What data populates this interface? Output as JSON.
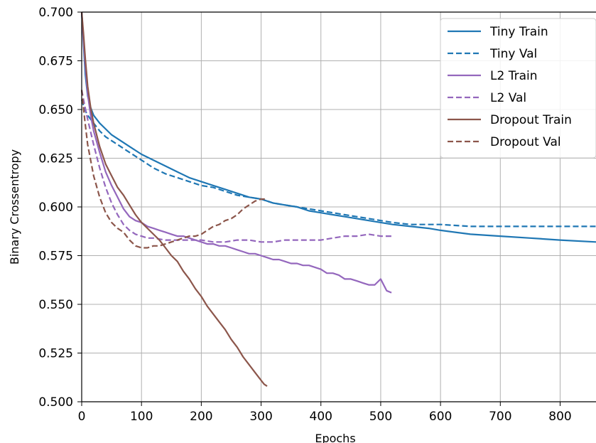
{
  "chart_data": {
    "type": "line",
    "title": "",
    "xlabel": "Epochs",
    "ylabel": "Binary Crossentropy",
    "xlim": [
      0,
      860
    ],
    "ylim": [
      0.5,
      0.7
    ],
    "xticks": [
      "0",
      "100",
      "200",
      "300",
      "400",
      "500",
      "600",
      "700",
      "800"
    ],
    "yticks": [
      "0.500",
      "0.525",
      "0.550",
      "0.575",
      "0.600",
      "0.625",
      "0.650",
      "0.675",
      "0.700"
    ],
    "grid": true,
    "legend_position": "top-right",
    "series": [
      {
        "name": "Tiny Train",
        "color": "#1f77b4",
        "style": "solid",
        "points": [
          [
            0,
            0.7
          ],
          [
            3,
            0.684
          ],
          [
            6,
            0.668
          ],
          [
            10,
            0.657
          ],
          [
            15,
            0.651
          ],
          [
            20,
            0.647
          ],
          [
            30,
            0.643
          ],
          [
            40,
            0.64
          ],
          [
            50,
            0.637
          ],
          [
            60,
            0.635
          ],
          [
            80,
            0.631
          ],
          [
            100,
            0.627
          ],
          [
            120,
            0.624
          ],
          [
            140,
            0.621
          ],
          [
            160,
            0.618
          ],
          [
            180,
            0.615
          ],
          [
            200,
            0.613
          ],
          [
            220,
            0.611
          ],
          [
            240,
            0.609
          ],
          [
            260,
            0.607
          ],
          [
            280,
            0.605
          ],
          [
            300,
            0.604
          ],
          [
            320,
            0.602
          ],
          [
            340,
            0.601
          ],
          [
            360,
            0.6
          ],
          [
            380,
            0.598
          ],
          [
            400,
            0.597
          ],
          [
            420,
            0.596
          ],
          [
            440,
            0.595
          ],
          [
            460,
            0.594
          ],
          [
            480,
            0.593
          ],
          [
            500,
            0.592
          ],
          [
            520,
            0.591
          ],
          [
            550,
            0.59
          ],
          [
            580,
            0.589
          ],
          [
            600,
            0.588
          ],
          [
            650,
            0.586
          ],
          [
            700,
            0.585
          ],
          [
            750,
            0.584
          ],
          [
            800,
            0.583
          ],
          [
            860,
            0.582
          ]
        ]
      },
      {
        "name": "Tiny Val",
        "color": "#1f77b4",
        "style": "dashed",
        "points": [
          [
            0,
            0.655
          ],
          [
            5,
            0.65
          ],
          [
            10,
            0.647
          ],
          [
            20,
            0.643
          ],
          [
            30,
            0.639
          ],
          [
            40,
            0.636
          ],
          [
            60,
            0.632
          ],
          [
            80,
            0.628
          ],
          [
            100,
            0.624
          ],
          [
            120,
            0.62
          ],
          [
            140,
            0.617
          ],
          [
            160,
            0.615
          ],
          [
            180,
            0.613
          ],
          [
            200,
            0.611
          ],
          [
            220,
            0.61
          ],
          [
            240,
            0.608
          ],
          [
            260,
            0.606
          ],
          [
            280,
            0.605
          ],
          [
            300,
            0.604
          ],
          [
            320,
            0.602
          ],
          [
            340,
            0.601
          ],
          [
            360,
            0.6
          ],
          [
            380,
            0.599
          ],
          [
            400,
            0.598
          ],
          [
            420,
            0.597
          ],
          [
            440,
            0.596
          ],
          [
            460,
            0.595
          ],
          [
            480,
            0.594
          ],
          [
            500,
            0.593
          ],
          [
            520,
            0.592
          ],
          [
            550,
            0.591
          ],
          [
            580,
            0.591
          ],
          [
            600,
            0.591
          ],
          [
            650,
            0.59
          ],
          [
            700,
            0.59
          ],
          [
            750,
            0.59
          ],
          [
            800,
            0.59
          ],
          [
            860,
            0.59
          ]
        ]
      },
      {
        "name": "L2 Train",
        "color": "#9467bd",
        "style": "solid",
        "points": [
          [
            0,
            0.7
          ],
          [
            3,
            0.686
          ],
          [
            6,
            0.672
          ],
          [
            10,
            0.658
          ],
          [
            15,
            0.647
          ],
          [
            20,
            0.639
          ],
          [
            30,
            0.628
          ],
          [
            40,
            0.618
          ],
          [
            50,
            0.611
          ],
          [
            60,
            0.605
          ],
          [
            70,
            0.599
          ],
          [
            80,
            0.595
          ],
          [
            90,
            0.593
          ],
          [
            100,
            0.592
          ],
          [
            110,
            0.59
          ],
          [
            120,
            0.589
          ],
          [
            130,
            0.588
          ],
          [
            140,
            0.587
          ],
          [
            150,
            0.586
          ],
          [
            160,
            0.585
          ],
          [
            170,
            0.585
          ],
          [
            180,
            0.584
          ],
          [
            190,
            0.583
          ],
          [
            200,
            0.582
          ],
          [
            210,
            0.581
          ],
          [
            220,
            0.581
          ],
          [
            230,
            0.58
          ],
          [
            240,
            0.58
          ],
          [
            250,
            0.579
          ],
          [
            260,
            0.578
          ],
          [
            270,
            0.577
          ],
          [
            280,
            0.576
          ],
          [
            290,
            0.576
          ],
          [
            300,
            0.575
          ],
          [
            310,
            0.574
          ],
          [
            320,
            0.573
          ],
          [
            330,
            0.573
          ],
          [
            340,
            0.572
          ],
          [
            350,
            0.571
          ],
          [
            360,
            0.571
          ],
          [
            370,
            0.57
          ],
          [
            380,
            0.57
          ],
          [
            390,
            0.569
          ],
          [
            400,
            0.568
          ],
          [
            410,
            0.566
          ],
          [
            420,
            0.566
          ],
          [
            430,
            0.565
          ],
          [
            440,
            0.563
          ],
          [
            450,
            0.563
          ],
          [
            460,
            0.562
          ],
          [
            470,
            0.561
          ],
          [
            480,
            0.56
          ],
          [
            490,
            0.56
          ],
          [
            500,
            0.563
          ],
          [
            505,
            0.56
          ],
          [
            510,
            0.557
          ],
          [
            518,
            0.556
          ]
        ]
      },
      {
        "name": "L2 Val",
        "color": "#9467bd",
        "style": "dashed",
        "points": [
          [
            0,
            0.66
          ],
          [
            5,
            0.652
          ],
          [
            10,
            0.645
          ],
          [
            20,
            0.632
          ],
          [
            30,
            0.62
          ],
          [
            40,
            0.61
          ],
          [
            50,
            0.602
          ],
          [
            60,
            0.596
          ],
          [
            70,
            0.591
          ],
          [
            80,
            0.588
          ],
          [
            90,
            0.586
          ],
          [
            100,
            0.585
          ],
          [
            110,
            0.584
          ],
          [
            120,
            0.584
          ],
          [
            140,
            0.583
          ],
          [
            160,
            0.583
          ],
          [
            180,
            0.583
          ],
          [
            200,
            0.583
          ],
          [
            220,
            0.582
          ],
          [
            240,
            0.582
          ],
          [
            260,
            0.583
          ],
          [
            280,
            0.583
          ],
          [
            300,
            0.582
          ],
          [
            320,
            0.582
          ],
          [
            340,
            0.583
          ],
          [
            360,
            0.583
          ],
          [
            380,
            0.583
          ],
          [
            400,
            0.583
          ],
          [
            420,
            0.584
          ],
          [
            440,
            0.585
          ],
          [
            460,
            0.585
          ],
          [
            480,
            0.586
          ],
          [
            500,
            0.585
          ],
          [
            510,
            0.585
          ],
          [
            518,
            0.585
          ]
        ]
      },
      {
        "name": "Dropout Train",
        "color": "#8c564b",
        "style": "solid",
        "points": [
          [
            0,
            0.7
          ],
          [
            3,
            0.689
          ],
          [
            6,
            0.676
          ],
          [
            10,
            0.662
          ],
          [
            15,
            0.651
          ],
          [
            20,
            0.643
          ],
          [
            30,
            0.631
          ],
          [
            40,
            0.622
          ],
          [
            50,
            0.616
          ],
          [
            60,
            0.61
          ],
          [
            70,
            0.606
          ],
          [
            80,
            0.601
          ],
          [
            90,
            0.596
          ],
          [
            100,
            0.592
          ],
          [
            110,
            0.589
          ],
          [
            120,
            0.586
          ],
          [
            130,
            0.583
          ],
          [
            140,
            0.579
          ],
          [
            150,
            0.575
          ],
          [
            160,
            0.572
          ],
          [
            170,
            0.567
          ],
          [
            180,
            0.563
          ],
          [
            190,
            0.558
          ],
          [
            200,
            0.554
          ],
          [
            210,
            0.549
          ],
          [
            220,
            0.545
          ],
          [
            230,
            0.541
          ],
          [
            240,
            0.537
          ],
          [
            250,
            0.532
          ],
          [
            260,
            0.528
          ],
          [
            270,
            0.523
          ],
          [
            280,
            0.519
          ],
          [
            290,
            0.515
          ],
          [
            300,
            0.511
          ],
          [
            305,
            0.509
          ],
          [
            310,
            0.508
          ]
        ]
      },
      {
        "name": "Dropout Val",
        "color": "#8c564b",
        "style": "dashed",
        "points": [
          [
            0,
            0.66
          ],
          [
            5,
            0.645
          ],
          [
            10,
            0.632
          ],
          [
            20,
            0.616
          ],
          [
            30,
            0.605
          ],
          [
            40,
            0.597
          ],
          [
            50,
            0.592
          ],
          [
            60,
            0.589
          ],
          [
            70,
            0.587
          ],
          [
            80,
            0.583
          ],
          [
            90,
            0.58
          ],
          [
            100,
            0.579
          ],
          [
            110,
            0.579
          ],
          [
            120,
            0.58
          ],
          [
            130,
            0.58
          ],
          [
            140,
            0.581
          ],
          [
            150,
            0.582
          ],
          [
            160,
            0.583
          ],
          [
            170,
            0.584
          ],
          [
            180,
            0.585
          ],
          [
            190,
            0.585
          ],
          [
            200,
            0.586
          ],
          [
            210,
            0.588
          ],
          [
            220,
            0.59
          ],
          [
            230,
            0.591
          ],
          [
            240,
            0.593
          ],
          [
            250,
            0.594
          ],
          [
            260,
            0.596
          ],
          [
            270,
            0.599
          ],
          [
            280,
            0.601
          ],
          [
            290,
            0.603
          ],
          [
            300,
            0.604
          ],
          [
            310,
            0.604
          ]
        ]
      }
    ]
  }
}
